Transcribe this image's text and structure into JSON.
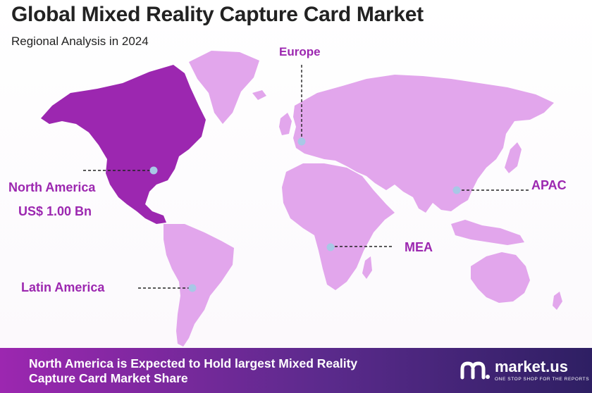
{
  "title": "Global Mixed Reality Capture Card Market",
  "subtitle": "Regional Analysis in 2024",
  "regions": [
    {
      "id": "north-america",
      "label": "North America",
      "value": "US$ 1.00 Bn",
      "highlight": true
    },
    {
      "id": "europe",
      "label": "Europe",
      "highlight": false
    },
    {
      "id": "apac",
      "label": "APAC",
      "highlight": false
    },
    {
      "id": "mea",
      "label": "MEA",
      "highlight": false
    },
    {
      "id": "latin-america",
      "label": "Latin America",
      "highlight": false
    }
  ],
  "footer": {
    "line1": "North America is Expected to Hold largest Mixed Reality",
    "line2": "Capture Card Market Share"
  },
  "brand": {
    "name": "market.us",
    "tagline": "ONE STOP SHOP FOR THE REPORTS"
  },
  "colors": {
    "highlight": "#9c27b0",
    "land": "#e2a6ec",
    "marker": "#a8c8e6",
    "title": "#222222"
  }
}
